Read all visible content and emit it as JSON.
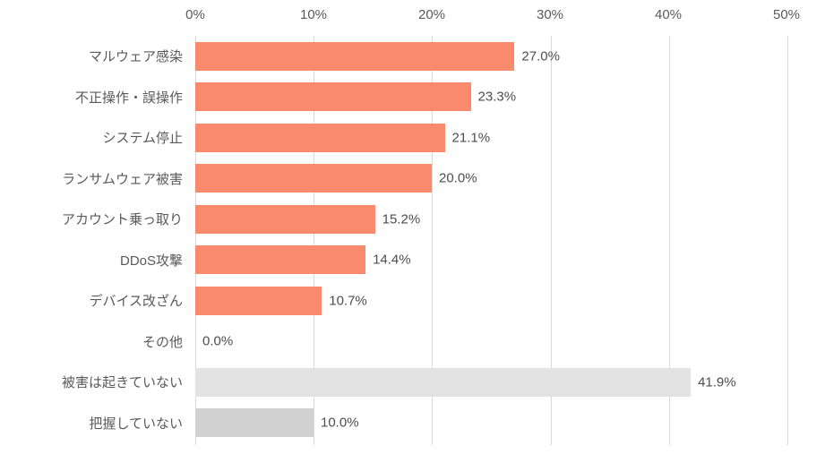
{
  "chart_data": {
    "type": "bar",
    "orientation": "horizontal",
    "title": "",
    "xlabel": "",
    "ylabel": "",
    "xlim": [
      0,
      50
    ],
    "grid": true,
    "axis_position": "top",
    "x_ticks": [
      "0%",
      "10%",
      "20%",
      "30%",
      "40%",
      "50%"
    ],
    "x_tick_values": [
      0,
      10,
      20,
      30,
      40,
      50
    ],
    "categories": [
      "マルウェア感染",
      "不正操作・誤操作",
      "システム停止",
      "ランサムウェア被害",
      "アカウント乗っ取り",
      "DDoS攻撃",
      "デバイス改ざん",
      "その他",
      "被害は起きていない",
      "把握していない"
    ],
    "values": [
      27.0,
      23.3,
      21.1,
      20.0,
      15.2,
      14.4,
      10.7,
      0.0,
      41.9,
      10.0
    ],
    "value_labels": [
      "27.0%",
      "23.3%",
      "21.1%",
      "20.0%",
      "15.2%",
      "14.4%",
      "10.7%",
      "0.0%",
      "41.9%",
      "10.0%"
    ],
    "bar_colors": [
      "#fa8a6d",
      "#fa8a6d",
      "#fa8a6d",
      "#fa8a6d",
      "#fa8a6d",
      "#fa8a6d",
      "#fa8a6d",
      "#fa8a6d",
      "#e3e3e3",
      "#d2d2d2"
    ]
  },
  "colors": {
    "accent_bar": "#fa8a6d",
    "neutral_bar_light": "#e3e3e3",
    "neutral_bar_dark": "#d2d2d2",
    "gridline": "#d9d9d9",
    "axis_text": "#595959",
    "value_text": "#4d4d4d",
    "background": "#ffffff"
  }
}
